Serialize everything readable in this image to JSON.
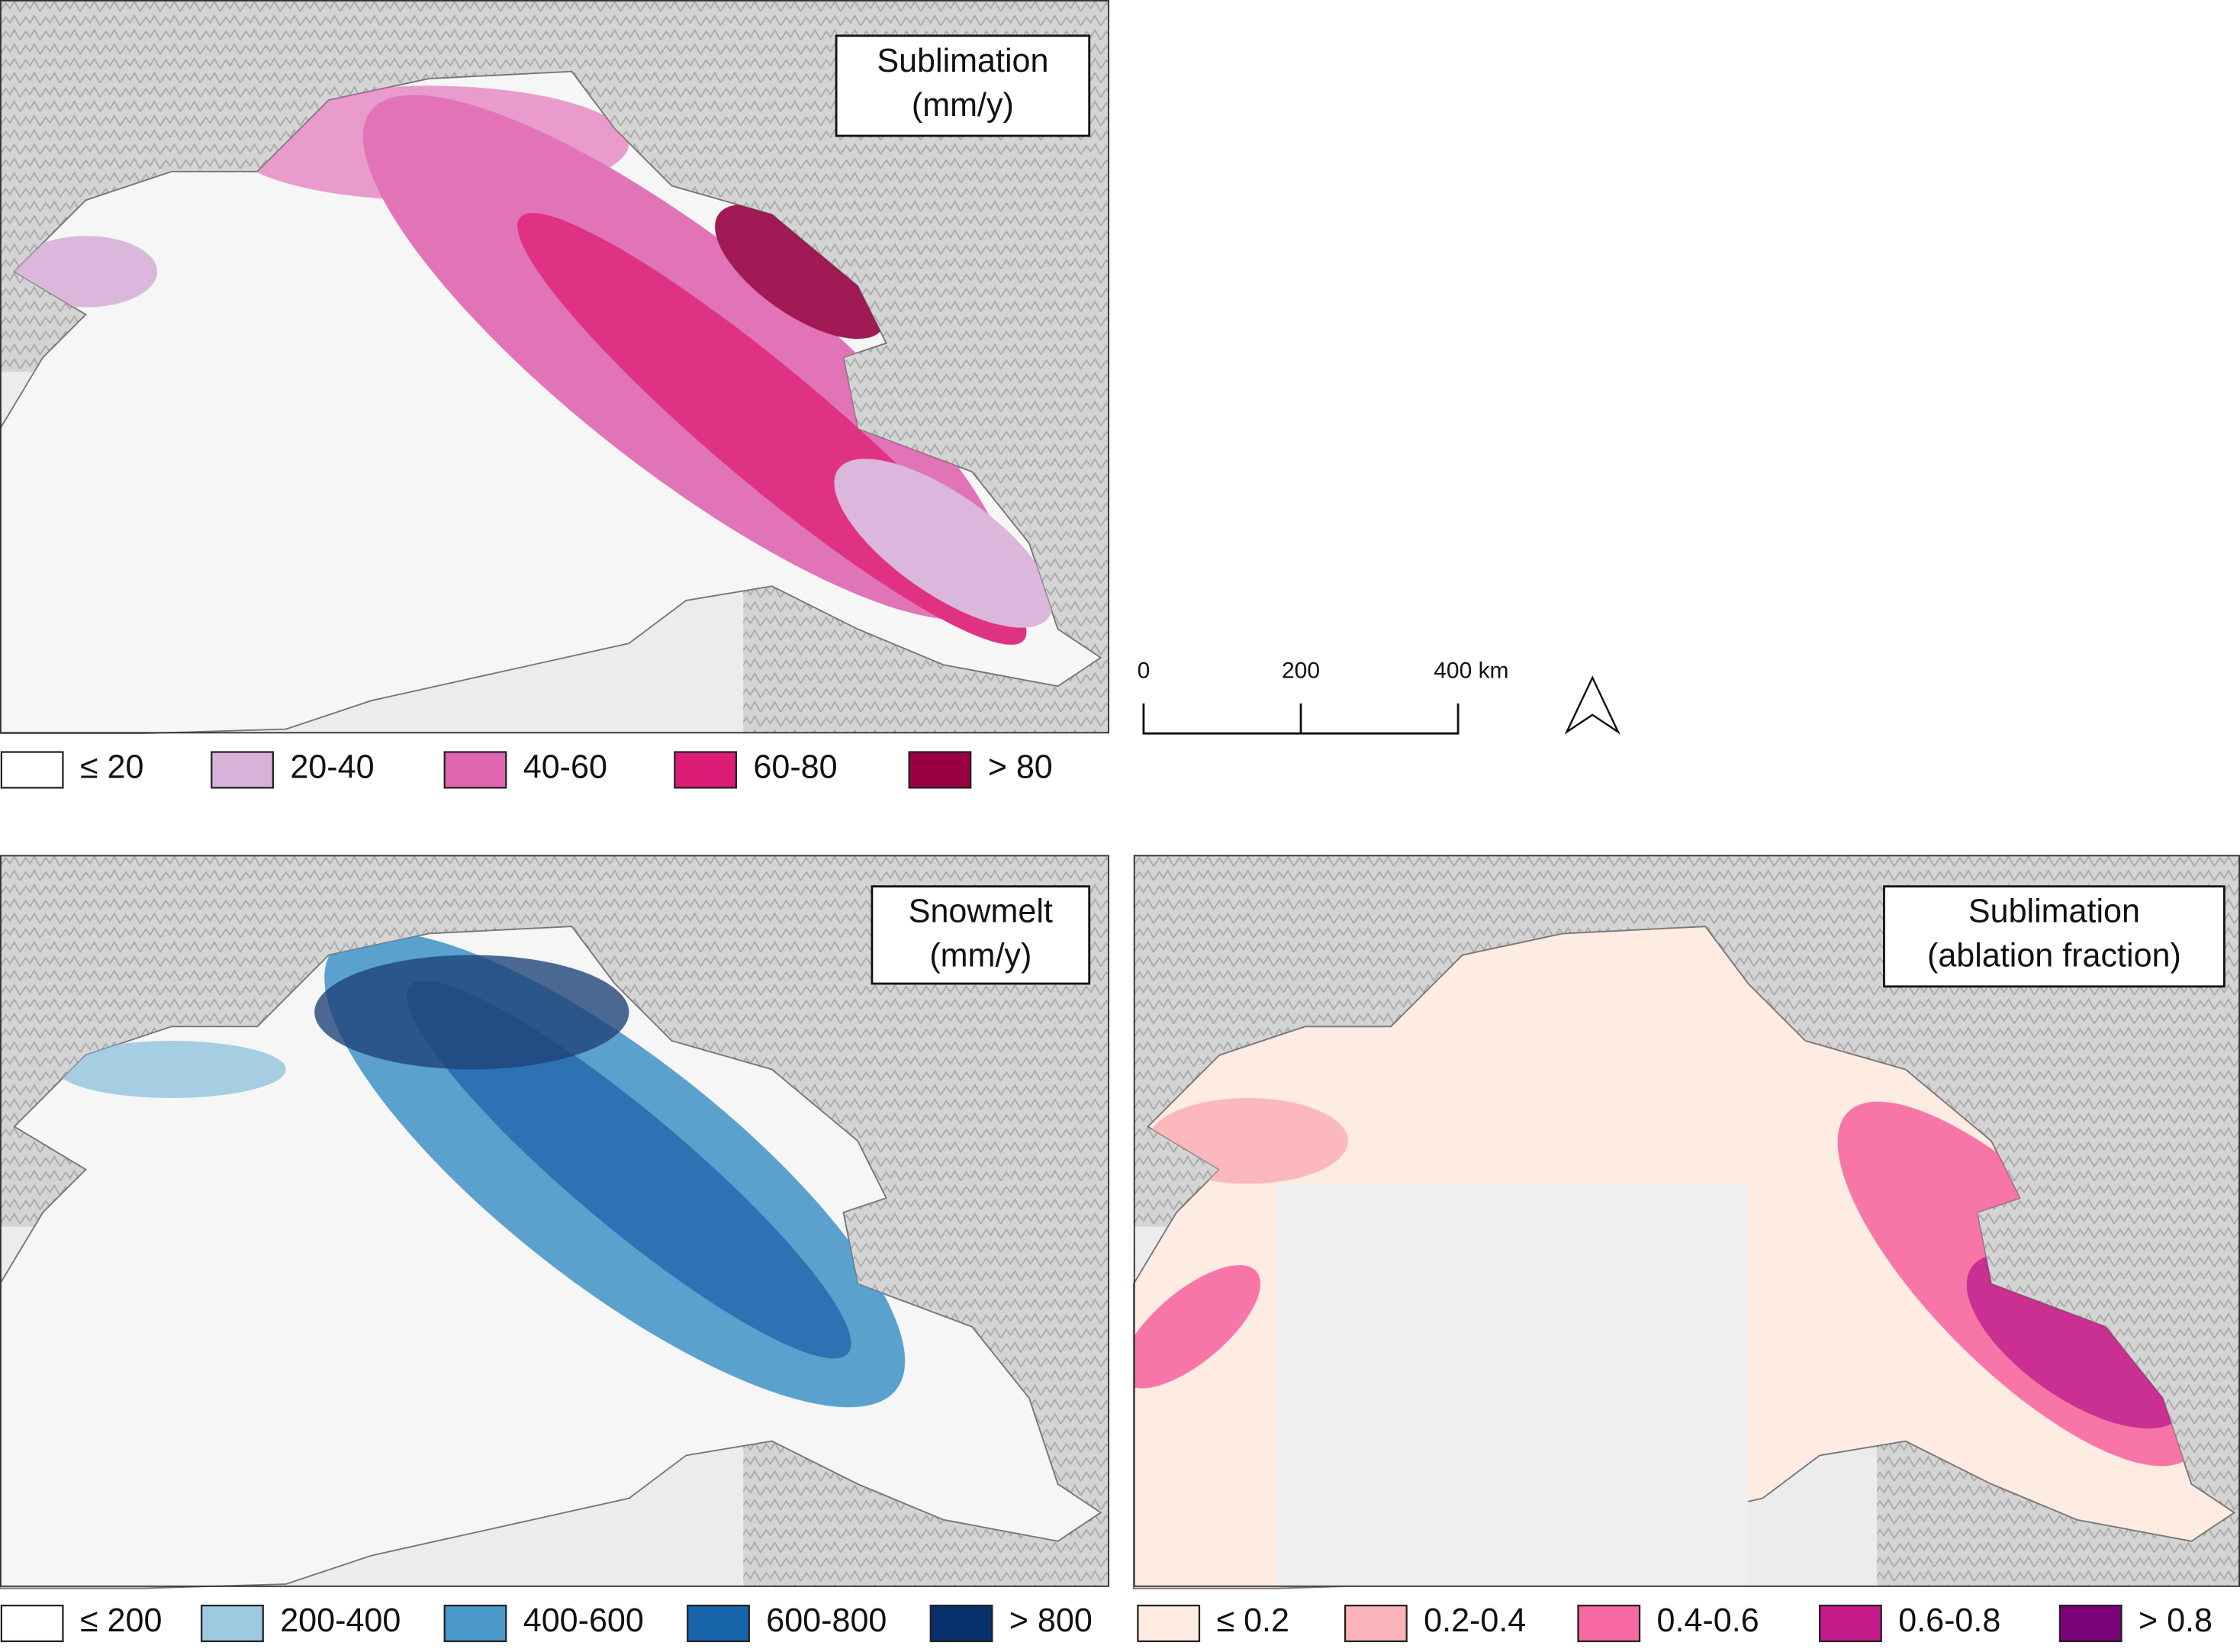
{
  "panels": [
    {
      "title": [
        "Sublimation",
        "(mm/y)"
      ],
      "legend": [
        {
          "label": "≤ 20",
          "color": "#ffffff"
        },
        {
          "label": "20-40",
          "color": "#d8b2d8"
        },
        {
          "label": "40-60",
          "color": "#df65b0"
        },
        {
          "label": "60-80",
          "color": "#dd1c77"
        },
        {
          "label": "> 80",
          "color": "#980043"
        }
      ]
    },
    {
      "title": [
        "Snowmelt",
        "(mm/y)"
      ],
      "legend": [
        {
          "label": "≤ 200",
          "color": "#ffffff"
        },
        {
          "label": "200-400",
          "color": "#9ecae1"
        },
        {
          "label": "400-600",
          "color": "#4a98c9"
        },
        {
          "label": "600-800",
          "color": "#1764ab"
        },
        {
          "label": "> 800",
          "color": "#08306b"
        }
      ]
    },
    {
      "title": [
        "Sublimation",
        "(ablation fraction)"
      ],
      "legend": [
        {
          "label": "≤ 0.2",
          "color": "#feebe2"
        },
        {
          "label": "0.2-0.4",
          "color": "#fbb4b9"
        },
        {
          "label": "0.4-0.6",
          "color": "#f768a1"
        },
        {
          "label": "0.6-0.8",
          "color": "#c51b8a"
        },
        {
          "label": "> 0.8",
          "color": "#7a0177"
        }
      ]
    }
  ],
  "scale_bar": {
    "labels": [
      "0",
      "200",
      "400 km"
    ]
  }
}
